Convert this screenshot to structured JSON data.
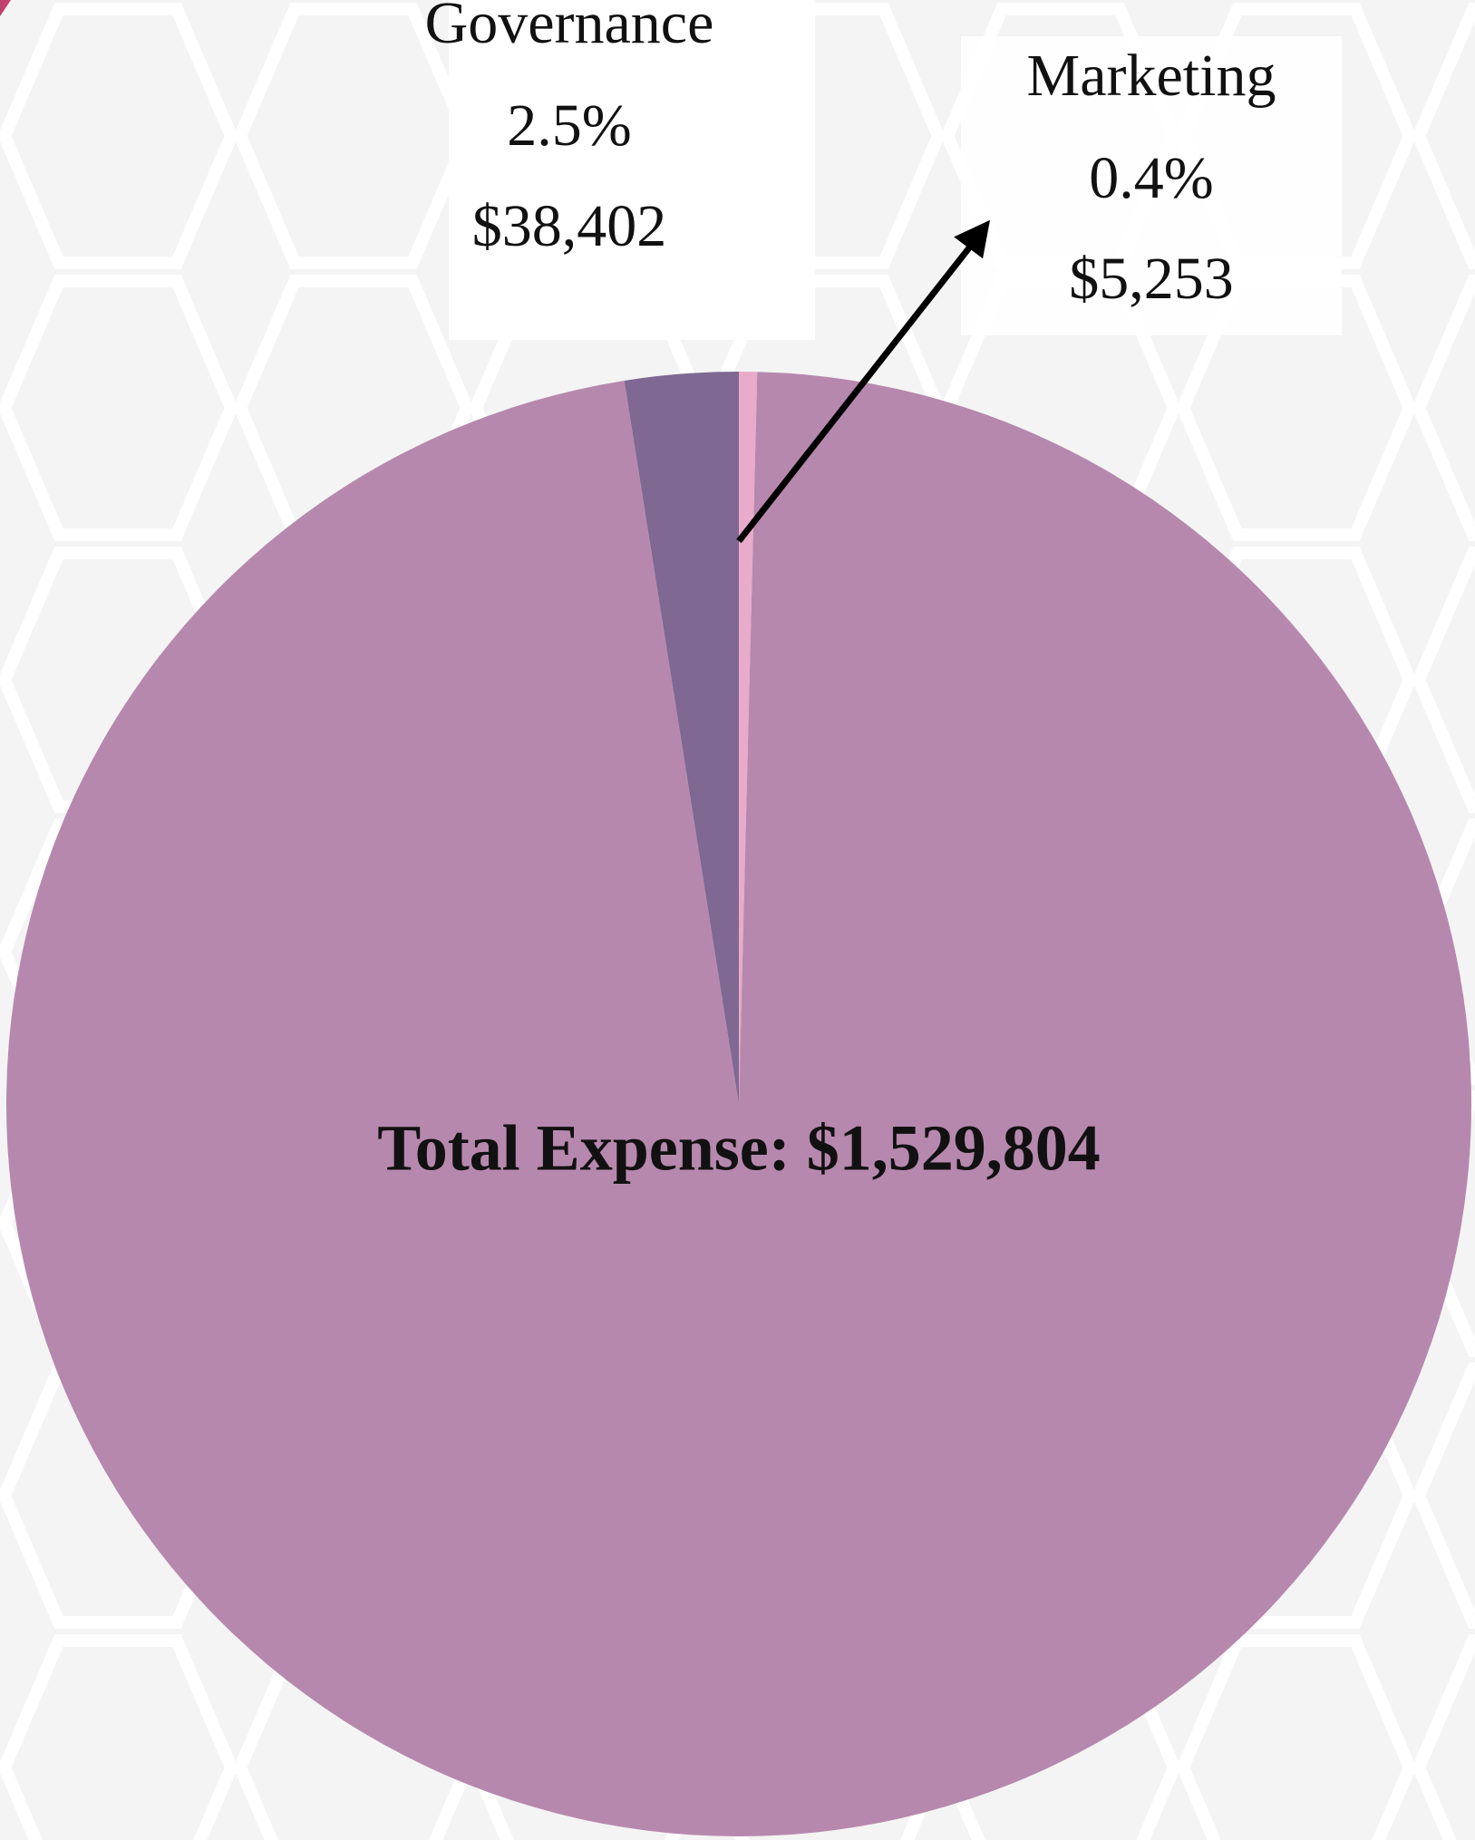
{
  "chart_data": {
    "type": "pie",
    "total_label": "Total Expense: $1,529,804",
    "categories": [
      "Marketing",
      null,
      "Governance"
    ],
    "values": [
      0.4,
      97.1,
      2.5
    ],
    "value_labels": [
      "0.4%",
      null,
      "2.5%"
    ],
    "amounts": [
      5253,
      null,
      38402
    ],
    "amount_labels": [
      "$5,253",
      null,
      "$38,402"
    ],
    "colors": [
      "#e8abca",
      "#b788ae",
      "#7f6892"
    ]
  }
}
